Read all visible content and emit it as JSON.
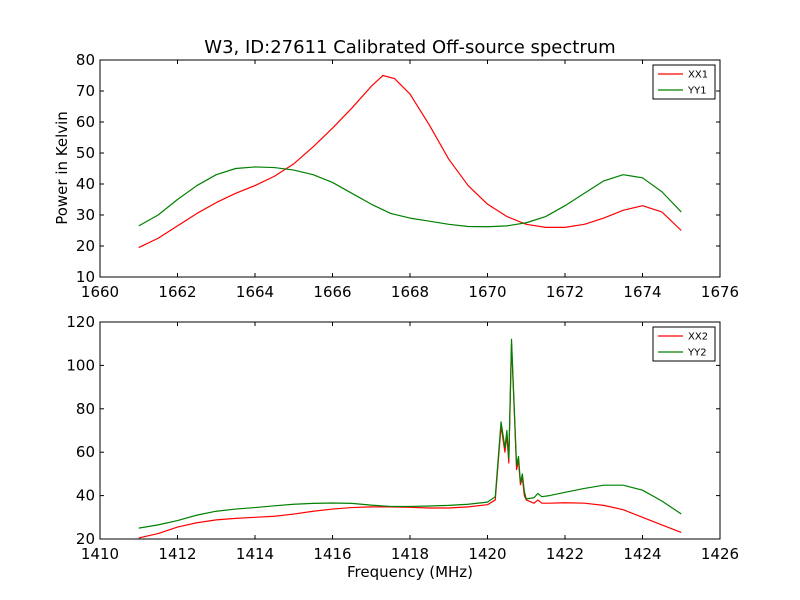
{
  "figure": {
    "title": "W3, ID:27611 Calibrated Off-source spectrum",
    "ylabel": "Power in Kelvin",
    "xlabel": "Frequency (MHz)"
  },
  "chart_data": [
    {
      "type": "line",
      "xlim": [
        1660,
        1676
      ],
      "ylim": [
        10,
        80
      ],
      "xticks": [
        1660,
        1662,
        1664,
        1666,
        1668,
        1670,
        1672,
        1674,
        1676
      ],
      "yticks": [
        10,
        20,
        30,
        40,
        50,
        60,
        70,
        80
      ],
      "legend_position": "top-right",
      "grid": false,
      "series": [
        {
          "name": "XX1",
          "color": "#ff0000",
          "points": [
            [
              1661.0,
              19.5
            ],
            [
              1661.5,
              22.5
            ],
            [
              1662.0,
              26.5
            ],
            [
              1662.5,
              30.5
            ],
            [
              1663.0,
              34.0
            ],
            [
              1663.5,
              37.0
            ],
            [
              1664.0,
              39.5
            ],
            [
              1664.5,
              42.5
            ],
            [
              1665.0,
              46.5
            ],
            [
              1665.5,
              52.0
            ],
            [
              1666.0,
              58.0
            ],
            [
              1666.5,
              64.5
            ],
            [
              1667.0,
              71.5
            ],
            [
              1667.3,
              75.0
            ],
            [
              1667.6,
              74.0
            ],
            [
              1668.0,
              69.0
            ],
            [
              1668.5,
              59.0
            ],
            [
              1669.0,
              48.0
            ],
            [
              1669.5,
              39.5
            ],
            [
              1670.0,
              33.5
            ],
            [
              1670.5,
              29.5
            ],
            [
              1671.0,
              27.0
            ],
            [
              1671.5,
              26.0
            ],
            [
              1672.0,
              26.0
            ],
            [
              1672.5,
              27.0
            ],
            [
              1673.0,
              29.0
            ],
            [
              1673.5,
              31.5
            ],
            [
              1674.0,
              33.0
            ],
            [
              1674.5,
              31.0
            ],
            [
              1675.0,
              25.0
            ]
          ]
        },
        {
          "name": "YY1",
          "color": "#008000",
          "points": [
            [
              1661.0,
              26.5
            ],
            [
              1661.5,
              30.0
            ],
            [
              1662.0,
              35.0
            ],
            [
              1662.5,
              39.5
            ],
            [
              1663.0,
              43.0
            ],
            [
              1663.5,
              45.0
            ],
            [
              1664.0,
              45.5
            ],
            [
              1664.5,
              45.3
            ],
            [
              1665.0,
              44.5
            ],
            [
              1665.5,
              43.0
            ],
            [
              1666.0,
              40.5
            ],
            [
              1666.5,
              37.0
            ],
            [
              1667.0,
              33.5
            ],
            [
              1667.5,
              30.5
            ],
            [
              1668.0,
              29.0
            ],
            [
              1668.5,
              28.0
            ],
            [
              1669.0,
              27.0
            ],
            [
              1669.5,
              26.3
            ],
            [
              1670.0,
              26.2
            ],
            [
              1670.5,
              26.5
            ],
            [
              1671.0,
              27.5
            ],
            [
              1671.5,
              29.5
            ],
            [
              1672.0,
              33.0
            ],
            [
              1672.5,
              37.0
            ],
            [
              1673.0,
              41.0
            ],
            [
              1673.5,
              43.0
            ],
            [
              1674.0,
              42.0
            ],
            [
              1674.5,
              37.5
            ],
            [
              1675.0,
              31.0
            ]
          ]
        }
      ]
    },
    {
      "type": "line",
      "xlim": [
        1410,
        1426
      ],
      "ylim": [
        20,
        120
      ],
      "xticks": [
        1410,
        1412,
        1414,
        1416,
        1418,
        1420,
        1422,
        1424,
        1426
      ],
      "yticks": [
        20,
        40,
        60,
        80,
        100,
        120
      ],
      "legend_position": "top-right",
      "grid": false,
      "series": [
        {
          "name": "XX2",
          "color": "#ff0000",
          "points": [
            [
              1411.0,
              20.5
            ],
            [
              1411.5,
              22.5
            ],
            [
              1412.0,
              25.5
            ],
            [
              1412.5,
              27.5
            ],
            [
              1413.0,
              28.8
            ],
            [
              1413.5,
              29.5
            ],
            [
              1414.0,
              30.0
            ],
            [
              1414.5,
              30.5
            ],
            [
              1415.0,
              31.5
            ],
            [
              1415.5,
              32.8
            ],
            [
              1416.0,
              33.8
            ],
            [
              1416.5,
              34.5
            ],
            [
              1417.0,
              34.8
            ],
            [
              1417.5,
              34.8
            ],
            [
              1418.0,
              34.6
            ],
            [
              1418.5,
              34.3
            ],
            [
              1419.0,
              34.3
            ],
            [
              1419.5,
              34.8
            ],
            [
              1420.0,
              35.8
            ],
            [
              1420.2,
              38.0
            ],
            [
              1420.35,
              72.0
            ],
            [
              1420.45,
              60.0
            ],
            [
              1420.5,
              68.0
            ],
            [
              1420.55,
              55.0
            ],
            [
              1420.62,
              110.0
            ],
            [
              1420.7,
              75.0
            ],
            [
              1420.75,
              52.0
            ],
            [
              1420.8,
              56.0
            ],
            [
              1420.85,
              45.0
            ],
            [
              1420.9,
              48.0
            ],
            [
              1420.95,
              40.0
            ],
            [
              1421.0,
              38.0
            ],
            [
              1421.2,
              36.5
            ],
            [
              1421.3,
              38.0
            ],
            [
              1421.4,
              36.5
            ],
            [
              1421.6,
              36.5
            ],
            [
              1422.0,
              36.7
            ],
            [
              1422.5,
              36.5
            ],
            [
              1423.0,
              35.5
            ],
            [
              1423.5,
              33.5
            ],
            [
              1424.0,
              30.0
            ],
            [
              1424.5,
              26.5
            ],
            [
              1425.0,
              23.0
            ]
          ]
        },
        {
          "name": "YY2",
          "color": "#008000",
          "points": [
            [
              1411.0,
              25.0
            ],
            [
              1411.5,
              26.5
            ],
            [
              1412.0,
              28.5
            ],
            [
              1412.5,
              31.0
            ],
            [
              1413.0,
              32.8
            ],
            [
              1413.5,
              33.8
            ],
            [
              1414.0,
              34.5
            ],
            [
              1414.5,
              35.3
            ],
            [
              1415.0,
              36.0
            ],
            [
              1415.5,
              36.4
            ],
            [
              1416.0,
              36.6
            ],
            [
              1416.5,
              36.4
            ],
            [
              1417.0,
              35.6
            ],
            [
              1417.5,
              35.0
            ],
            [
              1418.0,
              35.0
            ],
            [
              1418.5,
              35.2
            ],
            [
              1419.0,
              35.5
            ],
            [
              1419.5,
              36.0
            ],
            [
              1420.0,
              37.0
            ],
            [
              1420.2,
              39.5
            ],
            [
              1420.35,
              74.0
            ],
            [
              1420.45,
              62.0
            ],
            [
              1420.5,
              70.0
            ],
            [
              1420.55,
              57.0
            ],
            [
              1420.62,
              112.0
            ],
            [
              1420.7,
              76.0
            ],
            [
              1420.75,
              54.0
            ],
            [
              1420.8,
              58.0
            ],
            [
              1420.85,
              46.0
            ],
            [
              1420.9,
              50.0
            ],
            [
              1420.95,
              42.0
            ],
            [
              1421.0,
              38.5
            ],
            [
              1421.2,
              39.0
            ],
            [
              1421.3,
              41.0
            ],
            [
              1421.4,
              39.5
            ],
            [
              1421.6,
              40.0
            ],
            [
              1422.0,
              41.5
            ],
            [
              1422.5,
              43.3
            ],
            [
              1423.0,
              44.8
            ],
            [
              1423.5,
              44.8
            ],
            [
              1424.0,
              42.5
            ],
            [
              1424.5,
              37.5
            ],
            [
              1425.0,
              31.5
            ]
          ]
        }
      ]
    }
  ]
}
